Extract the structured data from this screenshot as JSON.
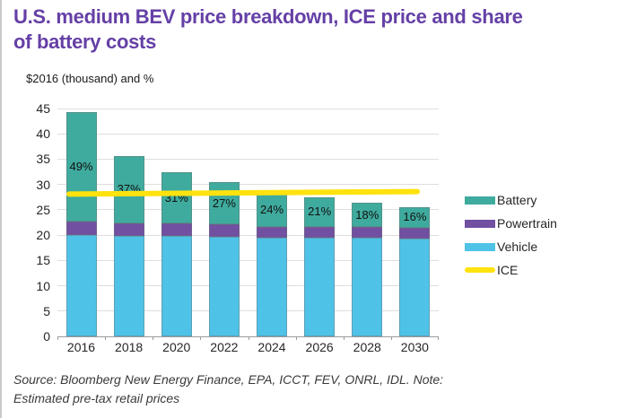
{
  "page": {
    "title_line1": "U.S. medium BEV price breakdown, ICE price and share",
    "title_line2": "of battery costs",
    "subtitle": "$2016 (thousand) and %",
    "source_line1": "Source: Bloomberg New Energy Finance, EPA, ICCT, FEV, ONRL, IDL. Note:",
    "source_line2": "Estimated pre-tax retail prices"
  },
  "colors": {
    "title": "#6540a6",
    "battery": "#3fab9e",
    "powertrain": "#7150a2",
    "vehicle": "#4fc2e7",
    "ice": "#ffe20e",
    "gridline": "#dedede",
    "axis": "#9b9b9b",
    "label_text": "#262626"
  },
  "chart_data": {
    "type": "bar",
    "subtype": "stacked-bars-with-line-overlay",
    "title": "U.S. medium BEV price breakdown, ICE price and share of battery costs",
    "ylabel": "$2016 (thousand) and %",
    "xlabel": "",
    "categories": [
      "2016",
      "2018",
      "2020",
      "2022",
      "2024",
      "2026",
      "2028",
      "2030"
    ],
    "series": [
      {
        "name": "Vehicle",
        "color_key": "vehicle",
        "values": [
          20.0,
          19.9,
          19.8,
          19.7,
          19.5,
          19.5,
          19.5,
          19.4
        ]
      },
      {
        "name": "Powertrain",
        "color_key": "powertrain",
        "values": [
          2.6,
          2.5,
          2.5,
          2.4,
          2.2,
          2.2,
          2.1,
          2.0
        ]
      },
      {
        "name": "Battery",
        "color_key": "battery",
        "values": [
          21.7,
          13.2,
          10.1,
          8.3,
          6.7,
          5.8,
          4.8,
          4.2
        ]
      }
    ],
    "bar_totals": [
      44.3,
      35.6,
      32.4,
      30.4,
      28.4,
      27.5,
      26.4,
      25.6
    ],
    "battery_share_labels": [
      "49%",
      "37%",
      "31%",
      "27%",
      "24%",
      "21%",
      "18%",
      "16%"
    ],
    "ice_line": {
      "name": "ICE",
      "color_key": "ice",
      "start_value": 28.1,
      "end_value": 28.6
    },
    "ylim": [
      0,
      45
    ],
    "ytick_step": 5,
    "grid": true,
    "legend_position": "right",
    "legend": [
      {
        "label": "Battery",
        "color_key": "battery",
        "swatch": "rect"
      },
      {
        "label": "Powertrain",
        "color_key": "powertrain",
        "swatch": "rect"
      },
      {
        "label": "Vehicle",
        "color_key": "vehicle",
        "swatch": "rect"
      },
      {
        "label": "ICE",
        "color_key": "ice",
        "swatch": "line"
      }
    ]
  }
}
